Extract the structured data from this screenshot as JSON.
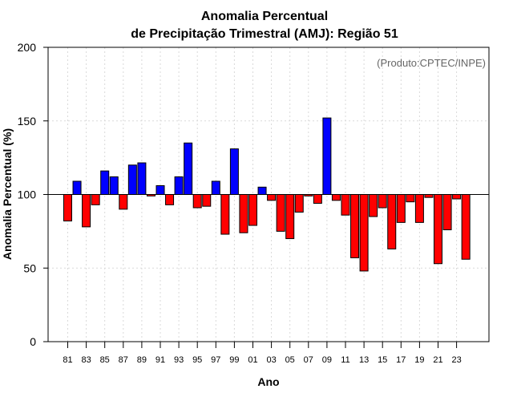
{
  "chart_data": {
    "type": "bar",
    "title": "Anomalia Percentual",
    "subtitle": "de Precipitação Trimestral (AMJ): Região 51",
    "xlabel": "Ano",
    "ylabel": "Anomalia Percentual (%)",
    "credit": "(Produto:CPTEC/INPE)",
    "ylim": [
      0,
      200
    ],
    "yticks": [
      0,
      50,
      100,
      150,
      200
    ],
    "baseline": 100,
    "x_tick_labels": [
      "81",
      "83",
      "85",
      "87",
      "89",
      "91",
      "93",
      "95",
      "97",
      "99",
      "01",
      "03",
      "05",
      "07",
      "09",
      "11",
      "13",
      "15",
      "17",
      "19",
      "21",
      "23"
    ],
    "categories": [
      "1981",
      "1982",
      "1983",
      "1984",
      "1985",
      "1986",
      "1987",
      "1988",
      "1989",
      "1990",
      "1991",
      "1992",
      "1993",
      "1994",
      "1995",
      "1996",
      "1997",
      "1998",
      "1999",
      "2000",
      "2001",
      "2002",
      "2003",
      "2004",
      "2005",
      "2006",
      "2007",
      "2008",
      "2009",
      "2010",
      "2011",
      "2012",
      "2013",
      "2014",
      "2015",
      "2016",
      "2017",
      "2018",
      "2019",
      "2020",
      "2021",
      "2022",
      "2023",
      "2024"
    ],
    "values": [
      82,
      109,
      78,
      93,
      116,
      112,
      90,
      120,
      121.5,
      99,
      106,
      93,
      112,
      135,
      91,
      92,
      109,
      73,
      131,
      74,
      79,
      105,
      96,
      75,
      70,
      88,
      99,
      94,
      152,
      96,
      86,
      57,
      48,
      85,
      91,
      63,
      81,
      95,
      81,
      98,
      53,
      76,
      97,
      56
    ],
    "colors": {
      "above": "#0000ff",
      "below": "#ff0000"
    },
    "grid": true
  }
}
